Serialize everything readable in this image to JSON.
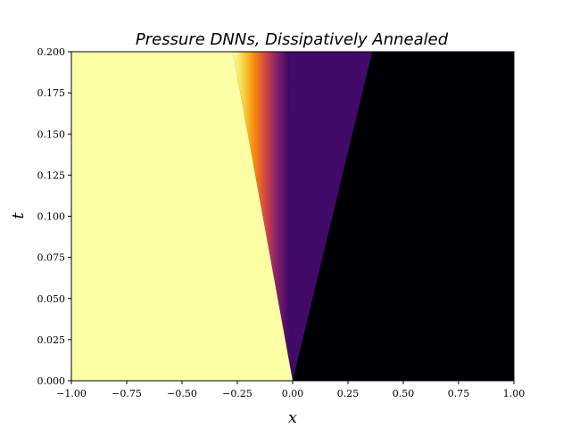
{
  "chart_data": {
    "type": "heatmap",
    "title": "Pressure DNNs, Dissipatively Annealed",
    "xlabel": "x",
    "ylabel": "t",
    "xlim": [
      -1.0,
      1.0
    ],
    "ylim": [
      0.0,
      0.2
    ],
    "x_ticks": [
      "−1.00",
      "−0.75",
      "−0.50",
      "−0.25",
      "0.00",
      "0.25",
      "0.50",
      "0.75",
      "1.00"
    ],
    "y_ticks": [
      "0.000",
      "0.025",
      "0.050",
      "0.075",
      "0.100",
      "0.125",
      "0.150",
      "0.175",
      "0.200"
    ],
    "colormap": "inferno",
    "colors": {
      "high": "#fcffa4",
      "mid_orange": "#f98c0a",
      "mid_red": "#bc3754",
      "plateau": "#420a68",
      "low": "#000004"
    },
    "regions": [
      {
        "description_value": 1.0,
        "x_range_at_t_max": [
          -1.0,
          -0.27
        ]
      },
      {
        "description_value": 0.15,
        "x_range_at_t_max": [
          -0.02,
          0.36
        ]
      },
      {
        "description_value": 0.0,
        "x_range_at_t_max": [
          0.36,
          1.0
        ]
      }
    ],
    "features": {
      "rarefaction_head_speed": -1.35,
      "rarefaction_tail_speed": -0.1,
      "shock_speed": 1.8,
      "origin": [
        0.0,
        0.0
      ]
    }
  }
}
